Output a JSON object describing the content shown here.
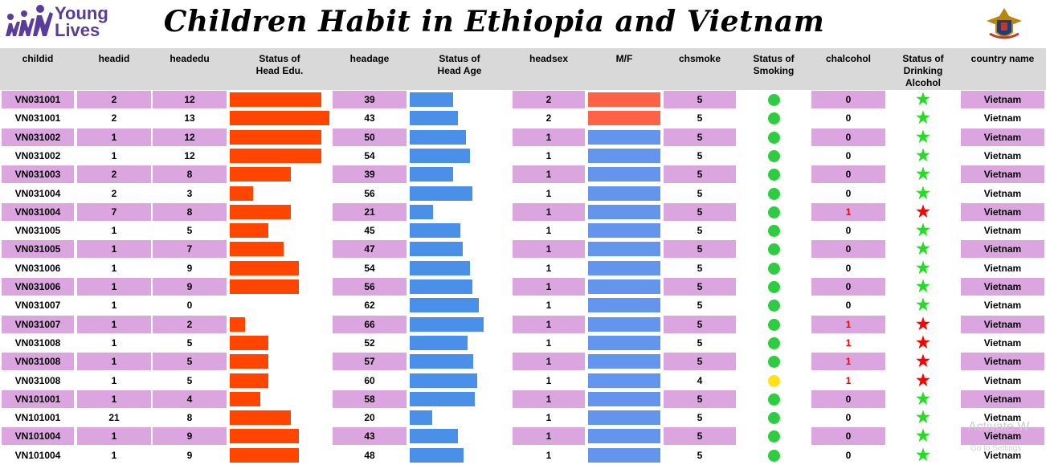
{
  "header": {
    "logo_line1": "Young",
    "logo_line2": "Lives",
    "title": "Children Habit in Ethiopia and Vietnam"
  },
  "colors": {
    "row_highlight": "#dba6e0",
    "header_bg": "#d9d9d9",
    "edu_bar": "#ff4500",
    "age_bar": "#4a8fe8",
    "female": "#ff6347",
    "male": "#6495ed",
    "smoke_green": "#2ecc40",
    "smoke_yellow": "#ffe01a",
    "alcohol_green": "#22dd22",
    "alcohol_red": "#ff0000"
  },
  "columns": [
    [
      "childid"
    ],
    [
      "headid"
    ],
    [
      "headedu"
    ],
    [
      "Status of",
      "Head Edu."
    ],
    [
      "headage"
    ],
    [
      "Status of",
      "Head Age"
    ],
    [
      "headsex"
    ],
    [
      "M/F"
    ],
    [
      "chsmoke"
    ],
    [
      "Status of",
      "Smoking"
    ],
    [
      "chalcohol"
    ],
    [
      "Status of",
      "Drinking",
      "Alcohol"
    ],
    [
      "country name"
    ]
  ],
  "scales": {
    "edu_max": 13,
    "age_max": 66
  },
  "rows": [
    {
      "childid": "VN031001",
      "headid": "2",
      "headedu": "12",
      "headage": "39",
      "headsex": "2",
      "chsmoke": "5",
      "smoke_status": "green",
      "chalcohol": "0",
      "alcohol_status": "green",
      "country": "Vietnam"
    },
    {
      "childid": "VN031001",
      "headid": "2",
      "headedu": "13",
      "headage": "43",
      "headsex": "2",
      "chsmoke": "5",
      "smoke_status": "green",
      "chalcohol": "0",
      "alcohol_status": "green",
      "country": "Vietnam"
    },
    {
      "childid": "VN031002",
      "headid": "1",
      "headedu": "12",
      "headage": "50",
      "headsex": "1",
      "chsmoke": "5",
      "smoke_status": "green",
      "chalcohol": "0",
      "alcohol_status": "green",
      "country": "Vietnam"
    },
    {
      "childid": "VN031002",
      "headid": "1",
      "headedu": "12",
      "headage": "54",
      "headsex": "1",
      "chsmoke": "5",
      "smoke_status": "green",
      "chalcohol": "0",
      "alcohol_status": "green",
      "country": "Vietnam"
    },
    {
      "childid": "VN031003",
      "headid": "2",
      "headedu": "8",
      "headage": "39",
      "headsex": "1",
      "chsmoke": "5",
      "smoke_status": "green",
      "chalcohol": "0",
      "alcohol_status": "green",
      "country": "Vietnam"
    },
    {
      "childid": "VN031004",
      "headid": "2",
      "headedu": "3",
      "headage": "56",
      "headsex": "1",
      "chsmoke": "5",
      "smoke_status": "green",
      "chalcohol": "0",
      "alcohol_status": "green",
      "country": "Vietnam"
    },
    {
      "childid": "VN031004",
      "headid": "7",
      "headedu": "8",
      "headage": "21",
      "headsex": "1",
      "chsmoke": "5",
      "smoke_status": "green",
      "chalcohol": "1",
      "alcohol_status": "red",
      "country": "Vietnam"
    },
    {
      "childid": "VN031005",
      "headid": "1",
      "headedu": "5",
      "headage": "45",
      "headsex": "1",
      "chsmoke": "5",
      "smoke_status": "green",
      "chalcohol": "0",
      "alcohol_status": "green",
      "country": "Vietnam"
    },
    {
      "childid": "VN031005",
      "headid": "1",
      "headedu": "7",
      "headage": "47",
      "headsex": "1",
      "chsmoke": "5",
      "smoke_status": "green",
      "chalcohol": "0",
      "alcohol_status": "green",
      "country": "Vietnam"
    },
    {
      "childid": "VN031006",
      "headid": "1",
      "headedu": "9",
      "headage": "54",
      "headsex": "1",
      "chsmoke": "5",
      "smoke_status": "green",
      "chalcohol": "0",
      "alcohol_status": "green",
      "country": "Vietnam"
    },
    {
      "childid": "VN031006",
      "headid": "1",
      "headedu": "9",
      "headage": "56",
      "headsex": "1",
      "chsmoke": "5",
      "smoke_status": "green",
      "chalcohol": "0",
      "alcohol_status": "green",
      "country": "Vietnam"
    },
    {
      "childid": "VN031007",
      "headid": "1",
      "headedu": "0",
      "headage": "62",
      "headsex": "1",
      "chsmoke": "5",
      "smoke_status": "green",
      "chalcohol": "0",
      "alcohol_status": "green",
      "country": "Vietnam"
    },
    {
      "childid": "VN031007",
      "headid": "1",
      "headedu": "2",
      "headage": "66",
      "headsex": "1",
      "chsmoke": "5",
      "smoke_status": "green",
      "chalcohol": "1",
      "alcohol_status": "red",
      "country": "Vietnam"
    },
    {
      "childid": "VN031008",
      "headid": "1",
      "headedu": "5",
      "headage": "52",
      "headsex": "1",
      "chsmoke": "5",
      "smoke_status": "green",
      "chalcohol": "1",
      "alcohol_status": "red",
      "country": "Vietnam"
    },
    {
      "childid": "VN031008",
      "headid": "1",
      "headedu": "5",
      "headage": "57",
      "headsex": "1",
      "chsmoke": "5",
      "smoke_status": "green",
      "chalcohol": "1",
      "alcohol_status": "red",
      "country": "Vietnam"
    },
    {
      "childid": "VN031008",
      "headid": "1",
      "headedu": "5",
      "headage": "60",
      "headsex": "1",
      "chsmoke": "4",
      "smoke_status": "yellow",
      "chalcohol": "1",
      "alcohol_status": "red",
      "country": "Vietnam"
    },
    {
      "childid": "VN101001",
      "headid": "1",
      "headedu": "4",
      "headage": "58",
      "headsex": "1",
      "chsmoke": "5",
      "smoke_status": "green",
      "chalcohol": "0",
      "alcohol_status": "green",
      "country": "Vietnam"
    },
    {
      "childid": "VN101001",
      "headid": "21",
      "headedu": "8",
      "headage": "20",
      "headsex": "1",
      "chsmoke": "5",
      "smoke_status": "green",
      "chalcohol": "0",
      "alcohol_status": "green",
      "country": "Vietnam"
    },
    {
      "childid": "VN101004",
      "headid": "1",
      "headedu": "9",
      "headage": "43",
      "headsex": "1",
      "chsmoke": "5",
      "smoke_status": "green",
      "chalcohol": "0",
      "alcohol_status": "green",
      "country": "Vietnam"
    },
    {
      "childid": "VN101004",
      "headid": "1",
      "headedu": "9",
      "headage": "48",
      "headsex": "1",
      "chsmoke": "5",
      "smoke_status": "green",
      "chalcohol": "0",
      "alcohol_status": "green",
      "country": "Vietnam"
    }
  ],
  "watermark": {
    "line1": "Activate W",
    "line2": "Go to Settings"
  }
}
